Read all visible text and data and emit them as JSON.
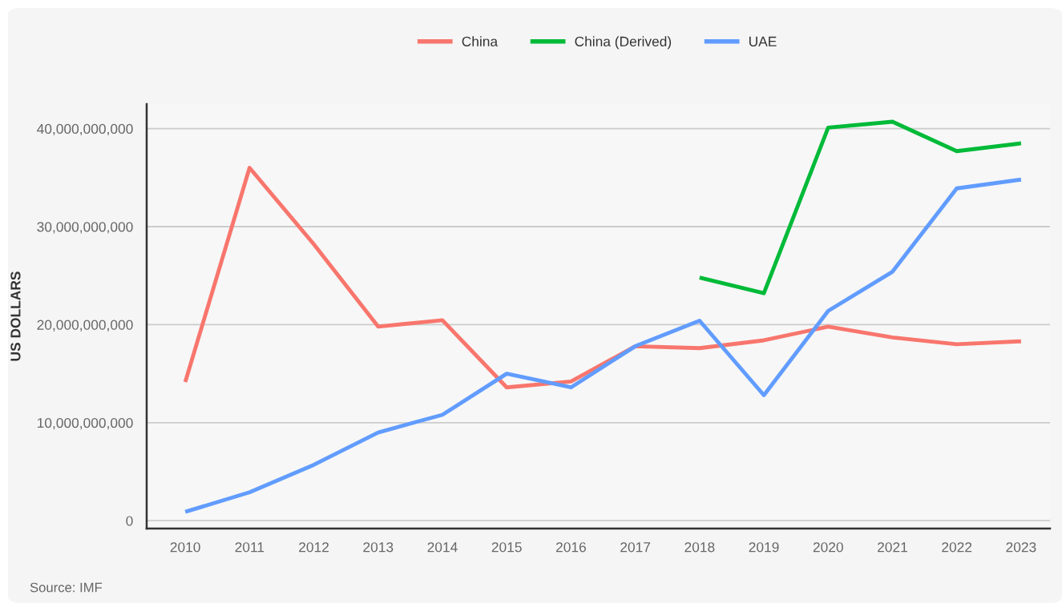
{
  "chart_data": {
    "type": "line",
    "ylabel": "US DOLLARS",
    "categories": [
      "2010",
      "2011",
      "2012",
      "2013",
      "2014",
      "2015",
      "2016",
      "2017",
      "2018",
      "2019",
      "2020",
      "2021",
      "2022",
      "2023"
    ],
    "series": [
      {
        "name": "China",
        "color": "#f8766d",
        "values": [
          14150000000,
          36000000000,
          28200000000,
          19800000000,
          20450000000,
          13600000000,
          14200000000,
          17800000000,
          17600000000,
          18400000000,
          19800000000,
          18700000000,
          18000000000,
          18300000000
        ]
      },
      {
        "name": "China (Derived)",
        "color": "#00ba38",
        "values": [
          null,
          null,
          null,
          null,
          null,
          null,
          null,
          null,
          24800000000,
          23200000000,
          40100000000,
          40700000000,
          37700000000,
          38500000000
        ]
      },
      {
        "name": "UAE",
        "color": "#619cff",
        "values": [
          900000000,
          2900000000,
          5700000000,
          9000000000,
          10800000000,
          15000000000,
          13600000000,
          17800000000,
          20400000000,
          12800000000,
          21400000000,
          25400000000,
          33900000000,
          34800000000
        ]
      }
    ],
    "ylim": [
      -800000000,
      42500000000
    ],
    "yticks": [
      {
        "value": 0,
        "label": "0"
      },
      {
        "value": 10000000000,
        "label": "10,000,000,000"
      },
      {
        "value": 20000000000,
        "label": "20,000,000,000"
      },
      {
        "value": 30000000000,
        "label": "30,000,000,000"
      },
      {
        "value": 40000000000,
        "label": "40,000,000,000"
      }
    ],
    "grid": "y",
    "legend": "top",
    "marker": "none",
    "line_style": "solid",
    "annotations": [
      "Source: IMF"
    ]
  }
}
